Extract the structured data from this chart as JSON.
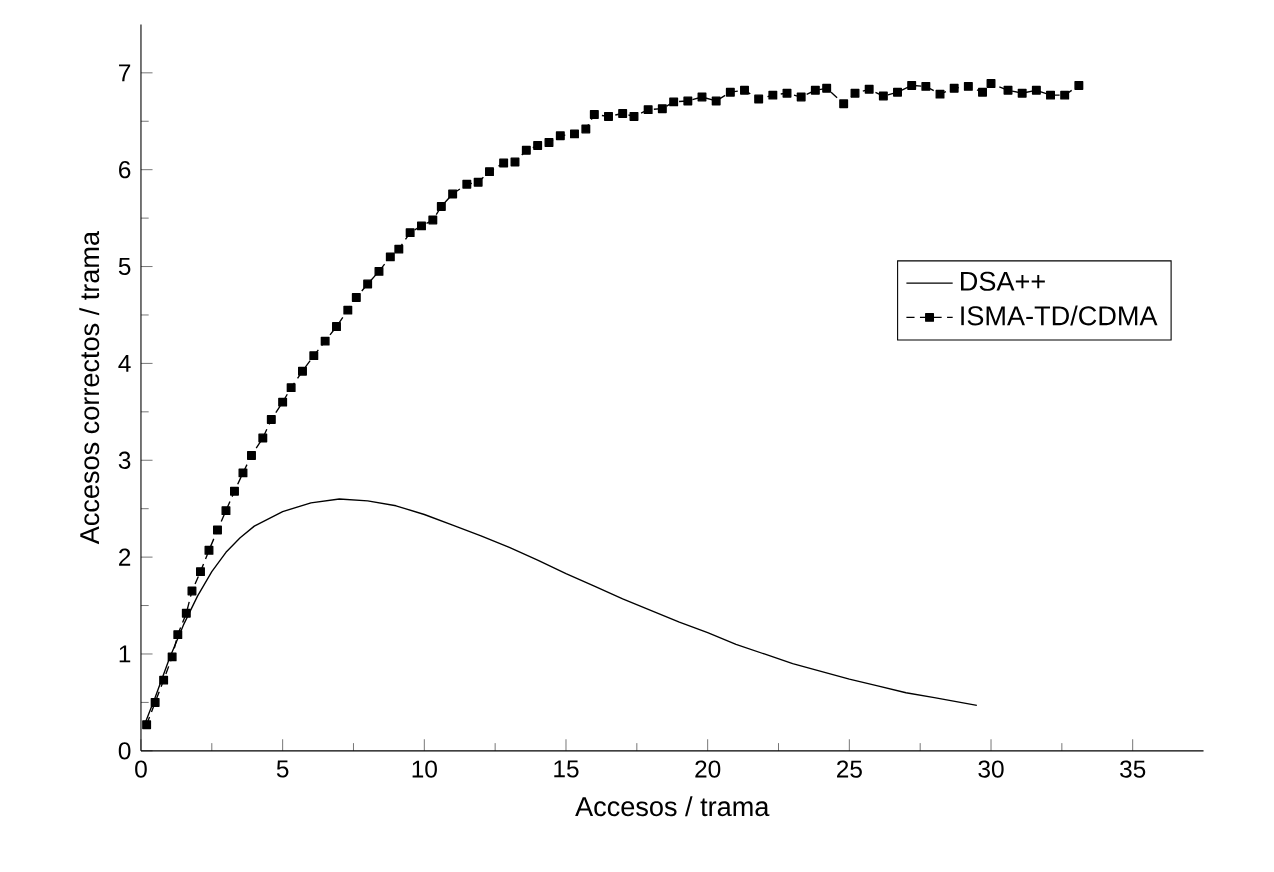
{
  "chart_data": {
    "type": "line",
    "xlabel": "Accesos / trama",
    "ylabel": "Accesos correctos / trama",
    "xlim": [
      0,
      37.5
    ],
    "ylim": [
      0,
      7.5
    ],
    "xticks": [
      0,
      5,
      10,
      15,
      20,
      25,
      30,
      35
    ],
    "yticks": [
      0,
      1,
      2,
      3,
      4,
      5,
      6,
      7
    ],
    "legend": "right",
    "series": [
      {
        "name": "DSA++",
        "color": "#000000",
        "marker": "none",
        "line_style": "solid",
        "x": [
          0.1,
          0.5,
          1,
          1.5,
          2,
          2.5,
          3,
          3.5,
          4,
          5,
          6,
          7,
          8,
          9,
          10,
          11,
          12,
          13,
          14,
          15,
          16,
          17,
          18,
          19,
          20,
          21,
          22,
          23,
          24,
          25,
          26,
          27,
          28,
          29.5
        ],
        "values": [
          0.25,
          0.55,
          0.95,
          1.3,
          1.6,
          1.85,
          2.05,
          2.2,
          2.32,
          2.47,
          2.56,
          2.6,
          2.58,
          2.53,
          2.44,
          2.33,
          2.22,
          2.1,
          1.97,
          1.83,
          1.7,
          1.57,
          1.45,
          1.33,
          1.22,
          1.1,
          1.0,
          0.9,
          0.82,
          0.74,
          0.67,
          0.6,
          0.55,
          0.47
        ]
      },
      {
        "name": "ISMA-TD/CDMA",
        "color": "#000000",
        "marker": "square",
        "line_style": "dashed",
        "x": [
          0.2,
          0.5,
          0.8,
          1.1,
          1.3,
          1.6,
          1.8,
          2.1,
          2.4,
          2.7,
          3.0,
          3.3,
          3.6,
          3.9,
          4.3,
          4.6,
          5.0,
          5.3,
          5.7,
          6.1,
          6.5,
          6.9,
          7.3,
          7.6,
          8.0,
          8.4,
          8.8,
          9.1,
          9.5,
          9.9,
          10.3,
          10.6,
          11.0,
          11.5,
          11.9,
          12.3,
          12.8,
          13.2,
          13.6,
          14.0,
          14.4,
          14.8,
          15.3,
          15.7,
          16.0,
          16.5,
          17.0,
          17.4,
          17.9,
          18.4,
          18.8,
          19.3,
          19.8,
          20.3,
          20.8,
          21.3,
          21.8,
          22.3,
          22.8,
          23.3,
          23.8,
          24.2,
          24.8,
          25.2,
          25.7,
          26.2,
          26.7,
          27.2,
          27.7,
          28.2,
          28.7,
          29.2,
          29.7,
          30.0,
          30.6,
          31.1,
          31.6,
          32.1,
          32.6,
          33.1
        ],
        "values": [
          0.27,
          0.5,
          0.73,
          0.97,
          1.2,
          1.42,
          1.65,
          1.85,
          2.07,
          2.28,
          2.48,
          2.68,
          2.87,
          3.05,
          3.23,
          3.42,
          3.6,
          3.75,
          3.92,
          4.08,
          4.23,
          4.38,
          4.55,
          4.68,
          4.82,
          4.95,
          5.1,
          5.18,
          5.35,
          5.42,
          5.48,
          5.62,
          5.75,
          5.85,
          5.87,
          5.98,
          6.07,
          6.08,
          6.2,
          6.25,
          6.28,
          6.35,
          6.37,
          6.42,
          6.57,
          6.55,
          6.58,
          6.55,
          6.62,
          6.63,
          6.7,
          6.71,
          6.75,
          6.71,
          6.8,
          6.82,
          6.73,
          6.77,
          6.79,
          6.75,
          6.82,
          6.84,
          6.68,
          6.79,
          6.83,
          6.76,
          6.8,
          6.87,
          6.86,
          6.78,
          6.84,
          6.86,
          6.8,
          6.89,
          6.82,
          6.79,
          6.82,
          6.77,
          6.77,
          6.87
        ]
      }
    ]
  }
}
